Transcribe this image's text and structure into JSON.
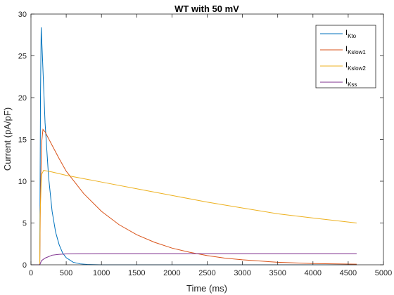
{
  "chart_data": {
    "type": "line",
    "title": "WT with 50 mV",
    "xlabel": "Time (ms)",
    "ylabel": "Current (pA/pF)",
    "xlim": [
      0,
      5000
    ],
    "ylim": [
      0,
      30
    ],
    "xticks": [
      0,
      500,
      1000,
      1500,
      2000,
      2500,
      3000,
      3500,
      4000,
      4500,
      5000
    ],
    "yticks": [
      0,
      5,
      10,
      15,
      20,
      25,
      30
    ],
    "grid": false,
    "legend_position": "top-right",
    "series": [
      {
        "name": "I_Kto",
        "legend_main": "I",
        "legend_sub": "Kto",
        "color": "#0072BD",
        "points": [
          [
            0,
            0
          ],
          [
            125,
            0
          ],
          [
            135,
            20
          ],
          [
            145,
            28.4
          ],
          [
            160,
            25.5
          ],
          [
            200,
            17
          ],
          [
            250,
            10.5
          ],
          [
            300,
            6.4
          ],
          [
            350,
            3.9
          ],
          [
            400,
            2.4
          ],
          [
            450,
            1.4
          ],
          [
            500,
            0.85
          ],
          [
            600,
            0.3
          ],
          [
            700,
            0.11
          ],
          [
            800,
            0.04
          ],
          [
            1000,
            0
          ],
          [
            4620,
            0
          ]
        ]
      },
      {
        "name": "I_Kslow1",
        "legend_main": "I",
        "legend_sub": "Kslow1",
        "color": "#D95319",
        "points": [
          [
            0,
            0
          ],
          [
            125,
            0
          ],
          [
            135,
            8
          ],
          [
            150,
            14.5
          ],
          [
            170,
            16.2
          ],
          [
            200,
            15.9
          ],
          [
            300,
            14.3
          ],
          [
            400,
            12.7
          ],
          [
            500,
            11.2
          ],
          [
            750,
            8.5
          ],
          [
            1000,
            6.4
          ],
          [
            1250,
            4.8
          ],
          [
            1500,
            3.6
          ],
          [
            1750,
            2.7
          ],
          [
            2000,
            2.0
          ],
          [
            2250,
            1.5
          ],
          [
            2500,
            1.1
          ],
          [
            2750,
            0.8
          ],
          [
            3000,
            0.6
          ],
          [
            3500,
            0.3
          ],
          [
            4000,
            0.15
          ],
          [
            4620,
            0.07
          ]
        ]
      },
      {
        "name": "I_Kslow2",
        "legend_main": "I",
        "legend_sub": "Kslow2",
        "color": "#EDB120",
        "points": [
          [
            0,
            0
          ],
          [
            125,
            0
          ],
          [
            130,
            6
          ],
          [
            150,
            10.8
          ],
          [
            180,
            11.3
          ],
          [
            300,
            11.1
          ],
          [
            500,
            10.7
          ],
          [
            1000,
            9.9
          ],
          [
            1500,
            9.1
          ],
          [
            2000,
            8.3
          ],
          [
            2500,
            7.5
          ],
          [
            3000,
            6.8
          ],
          [
            3500,
            6.1
          ],
          [
            4000,
            5.6
          ],
          [
            4620,
            5.0
          ]
        ]
      },
      {
        "name": "I_Kss",
        "legend_main": "I",
        "legend_sub": "Kss",
        "color": "#7E2F8E",
        "points": [
          [
            0,
            0
          ],
          [
            125,
            0
          ],
          [
            150,
            0.5
          ],
          [
            200,
            0.8
          ],
          [
            300,
            1.15
          ],
          [
            400,
            1.25
          ],
          [
            500,
            1.3
          ],
          [
            700,
            1.32
          ],
          [
            1000,
            1.33
          ],
          [
            4620,
            1.33
          ]
        ]
      }
    ]
  }
}
